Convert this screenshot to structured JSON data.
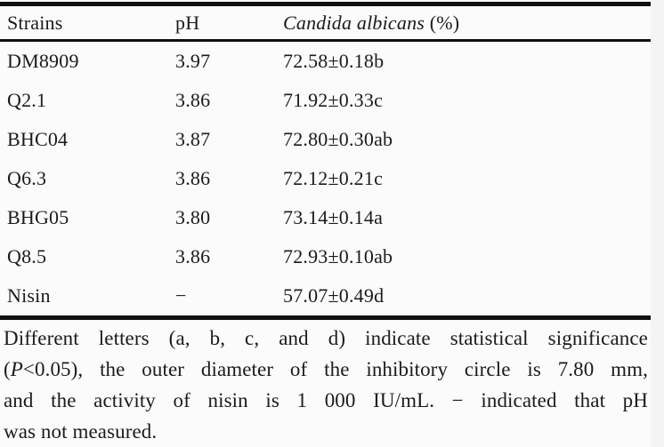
{
  "table": {
    "columns": [
      {
        "label": "Strains"
      },
      {
        "label": "pH"
      },
      {
        "label_italic": "Candida albicans",
        "label_suffix": " (%)"
      }
    ],
    "rows": [
      {
        "strain": "DM8909",
        "ph": "3.97",
        "value": "72.58±0.18b"
      },
      {
        "strain": "Q2.1",
        "ph": "3.86",
        "value": "71.92±0.33c"
      },
      {
        "strain": "BHC04",
        "ph": "3.87",
        "value": "72.80±0.30ab"
      },
      {
        "strain": "Q6.3",
        "ph": "3.86",
        "value": "72.12±0.21c"
      },
      {
        "strain": "BHG05",
        "ph": "3.80",
        "value": "73.14±0.14a"
      },
      {
        "strain": "Q8.5",
        "ph": "3.86",
        "value": "72.93±0.10ab"
      },
      {
        "strain": "Nisin",
        "ph": "−",
        "value": "57.07±0.49d"
      }
    ]
  },
  "footnote": {
    "lines": [
      {
        "pre": "Different letters (a, b, c, and d) indicate statistical significance",
        "italic": "",
        "post": ""
      },
      {
        "pre": "(",
        "italic": "P",
        "post": "<0.05), the outer diameter of the inhibitory circle is 7.80 mm,"
      },
      {
        "pre": "and the activity of nisin is 1 000 IU/mL. − indicated that pH",
        "italic": "",
        "post": ""
      },
      {
        "pre": "was not measured.",
        "italic": "",
        "post": ""
      }
    ]
  },
  "colors": {
    "text": "#1b1b1b",
    "rule": "#101010",
    "background": "#fbfbfb",
    "edge_strip": "#f4f4f5"
  }
}
